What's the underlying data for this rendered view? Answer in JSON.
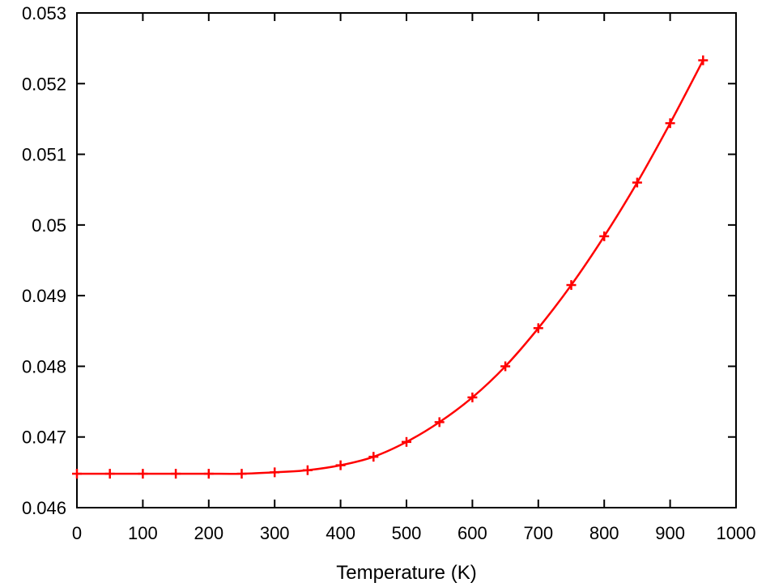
{
  "chart_data": {
    "type": "line",
    "title": "",
    "xlabel": "Temperature (K)",
    "ylabel": "",
    "xlim": [
      0,
      1000
    ],
    "ylim": [
      0.046,
      0.053
    ],
    "xticks": [
      0,
      100,
      200,
      300,
      400,
      500,
      600,
      700,
      800,
      900,
      1000
    ],
    "xtick_labels": [
      "0",
      "100",
      "200",
      "300",
      "400",
      "500",
      "600",
      "700",
      "800",
      "900",
      "1000"
    ],
    "yticks": [
      0.046,
      0.047,
      0.048,
      0.049,
      0.05,
      0.051,
      0.052,
      0.053
    ],
    "ytick_labels": [
      "0.046",
      "0.047",
      "0.048",
      "0.049",
      "0.05",
      "0.051",
      "0.052",
      "0.053"
    ],
    "grid": false,
    "legend": "none",
    "series": [
      {
        "color": "#ff0000",
        "marker": "plus",
        "x": [
          0,
          50,
          100,
          150,
          200,
          250,
          300,
          350,
          400,
          450,
          500,
          550,
          600,
          650,
          700,
          750,
          800,
          850,
          900,
          950
        ],
        "y": [
          0.04648,
          0.04648,
          0.04648,
          0.04648,
          0.04648,
          0.04648,
          0.0465,
          0.04653,
          0.0466,
          0.04672,
          0.04693,
          0.04721,
          0.04756,
          0.048,
          0.04854,
          0.04915,
          0.04984,
          0.0506,
          0.05144,
          0.05233
        ]
      }
    ]
  }
}
